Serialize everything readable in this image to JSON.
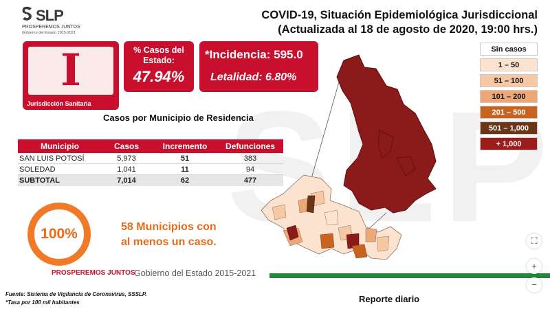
{
  "brand": {
    "name": "SLP",
    "tagline": "PROSPEREMOS JUNTOS",
    "subtag": "Gobierno del Estado 2015-2021"
  },
  "title": {
    "line1": "COVID-19, Situación Epidemiológica Jurisdiccional",
    "line2": "(Actualizada al 18 de agosto de 2020, 19:00 hrs.)"
  },
  "jurisdiction": {
    "numeral": "I",
    "label": "Jurisdicción Sanitaria"
  },
  "state_share": {
    "label": "% Casos del Estado:",
    "value": "47.94%"
  },
  "rates": {
    "incidence": "*Incidencia: 595.0",
    "lethality": "Letalidad: 6.80%"
  },
  "table": {
    "title": "Casos por Municipio  de Residencia",
    "headers": [
      "Municipio",
      "Casos",
      "Incremento",
      "Defunciones"
    ],
    "rows": [
      [
        "SAN LUIS POTOSÍ",
        "5,973",
        "51",
        "383"
      ],
      [
        "SOLEDAD",
        "1,041",
        "11",
        "94"
      ]
    ],
    "subtotal": [
      "SUBTOTAL",
      "7,014",
      "62",
      "477"
    ]
  },
  "summary": {
    "percent": "100%",
    "line1": "58 Municipios con",
    "line2": "al menos un caso."
  },
  "legend": [
    {
      "label": "Sin casos",
      "bg": "#ffffff",
      "fg": "#111111"
    },
    {
      "label": "1 – 50",
      "bg": "#fbe3cf",
      "fg": "#111111"
    },
    {
      "label": "51 – 100",
      "bg": "#f6c9a4",
      "fg": "#111111"
    },
    {
      "label": "101 – 200",
      "bg": "#eea877",
      "fg": "#111111"
    },
    {
      "label": "201 – 500",
      "bg": "#c8641f",
      "fg": "#ffffff"
    },
    {
      "label": "501 – 1,000",
      "bg": "#6b3518",
      "fg": "#ffffff"
    },
    {
      "label": "+ 1,000",
      "bg": "#9e1b1b",
      "fg": "#ffffff"
    }
  ],
  "footer": {
    "logo": "PROSPEREMOS JUNTOS",
    "gov": "Gobierno del Estado 2015-2021",
    "source": "Fuente: Sistema de Vigilancia de Coronavirus, SSSLP.",
    "note": "*Tasa por 100 mil habitantes",
    "report": "Reporte diario"
  },
  "controls": {
    "fit": "⛶",
    "zoom_in": "+",
    "zoom_out": "−"
  },
  "colors": {
    "red": "#c8102e",
    "orange": "#e86a1a",
    "green": "#1f8a3a",
    "map_dark": "#8b1a1a"
  }
}
